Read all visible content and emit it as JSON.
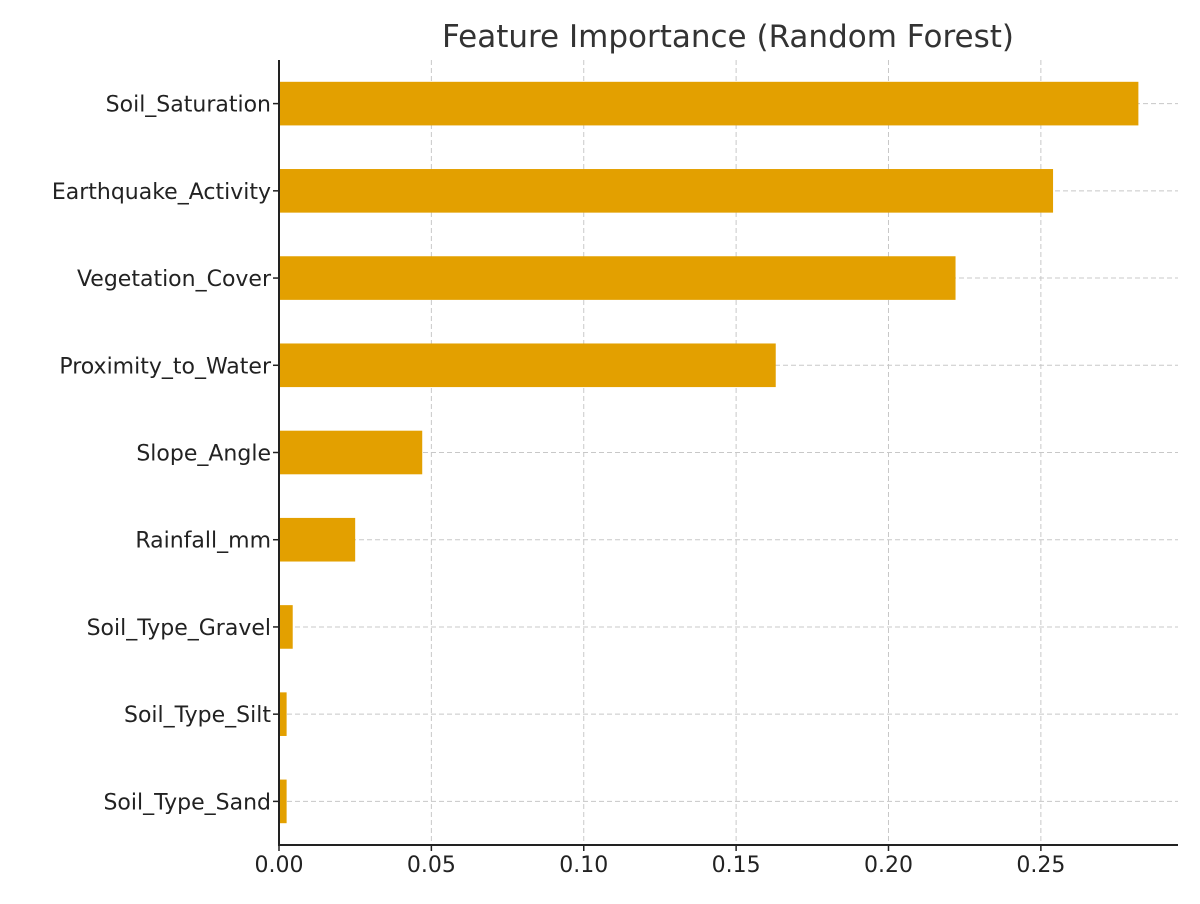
{
  "chart_data": {
    "type": "bar",
    "orientation": "horizontal",
    "title": "Feature Importance (Random Forest)",
    "xlabel": "",
    "ylabel": "",
    "categories": [
      "Soil_Saturation",
      "Earthquake_Activity",
      "Vegetation_Cover",
      "Proximity_to_Water",
      "Slope_Angle",
      "Rainfall_mm",
      "Soil_Type_Gravel",
      "Soil_Type_Silt",
      "Soil_Type_Sand"
    ],
    "values": [
      0.282,
      0.254,
      0.222,
      0.163,
      0.047,
      0.025,
      0.0045,
      0.0025,
      0.0025
    ],
    "xlim": [
      0,
      0.295
    ],
    "xticks": [
      0.0,
      0.05,
      0.1,
      0.15,
      0.2,
      0.25
    ],
    "xtick_labels": [
      "0.00",
      "0.05",
      "0.10",
      "0.15",
      "0.20",
      "0.25"
    ],
    "bar_color": "#e3a000",
    "grid": true
  }
}
